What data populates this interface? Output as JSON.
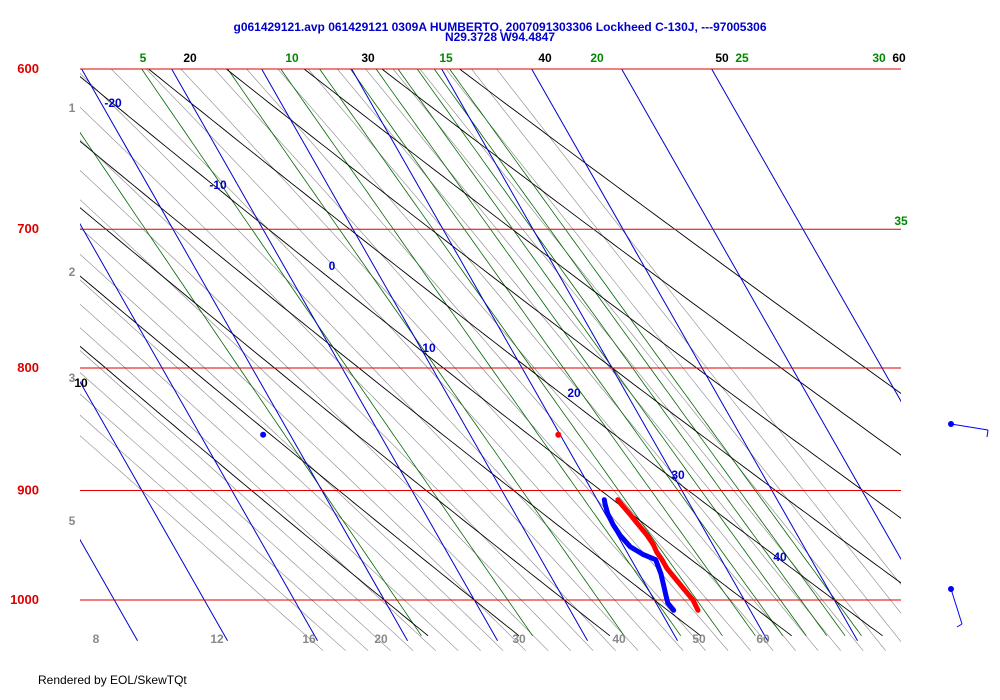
{
  "title_line1": "g061429121.avp 061429121 0309A HUMBERTO, 2007091303306 Lockheed C-130J, ---97005306",
  "title_line2": "N29.3728 W94.4847",
  "footer": "Rendered by EOL/SkewTQt",
  "colors": {
    "isobar": "#dd0000",
    "isotherm": "#0000cc",
    "dry_adiabat": "#000000",
    "mixing_ratio": "#006600",
    "moist_adiabat": "#888888",
    "temperature_trace": "#ff0000",
    "dewpoint_trace": "#0000ff"
  },
  "chart_data": {
    "type": "skew-t",
    "pressure_axis": {
      "levels_hpa": [
        600,
        700,
        800,
        900,
        1000
      ],
      "range_hpa": [
        1030,
        600
      ],
      "scale": "log"
    },
    "temperature_axis": {
      "range_c": [
        -25,
        40
      ],
      "skewed": true
    },
    "isotherm_labels_c": [
      -20,
      -10,
      0,
      10,
      20,
      30,
      40
    ],
    "dry_adiabat_labels_c": [
      10,
      20,
      30,
      40,
      50,
      60
    ],
    "mixing_ratio_labels_gkg": [
      5,
      10,
      15,
      20,
      25,
      30,
      35
    ],
    "left_scale_labels": [
      "1",
      "2",
      "3",
      "5"
    ],
    "bottom_scale_labels": [
      "8",
      "12",
      "16",
      "20",
      "30",
      "40",
      "50",
      "60"
    ],
    "series": [
      {
        "name": "",
        "variable": "temperature_c",
        "points": [
          {
            "p": 1010,
            "t": 24.2
          },
          {
            "p": 1000,
            "t": 24.3
          },
          {
            "p": 990,
            "t": 24.0
          },
          {
            "p": 980,
            "t": 23.7
          },
          {
            "p": 970,
            "t": 23.4
          },
          {
            "p": 962,
            "t": 23.4
          },
          {
            "p": 955,
            "t": 23.3
          },
          {
            "p": 948,
            "t": 23.4
          },
          {
            "p": 940,
            "t": 23.3
          },
          {
            "p": 930,
            "t": 23.0
          },
          {
            "p": 920,
            "t": 22.7
          },
          {
            "p": 912,
            "t": 22.4
          },
          {
            "p": 908,
            "t": 22.3
          }
        ]
      },
      {
        "name": "",
        "variable": "dewpoint_c",
        "points": [
          {
            "p": 1010,
            "t": 21.5
          },
          {
            "p": 1003,
            "t": 21.3
          },
          {
            "p": 995,
            "t": 21.6
          },
          {
            "p": 985,
            "t": 22.0
          },
          {
            "p": 975,
            "t": 22.4
          },
          {
            "p": 962,
            "t": 22.7
          },
          {
            "p": 957,
            "t": 21.6
          },
          {
            "p": 950,
            "t": 20.7
          },
          {
            "p": 940,
            "t": 20.3
          },
          {
            "p": 930,
            "t": 20.2
          },
          {
            "p": 920,
            "t": 20.3
          },
          {
            "p": 912,
            "t": 20.6
          },
          {
            "p": 908,
            "t": 20.8
          }
        ]
      }
    ],
    "isolated_points": [
      {
        "variable": "temperature_c",
        "p": 853,
        "t": 19.8
      },
      {
        "variable": "dewpoint_c",
        "p": 853,
        "t": -13.0
      }
    ]
  }
}
